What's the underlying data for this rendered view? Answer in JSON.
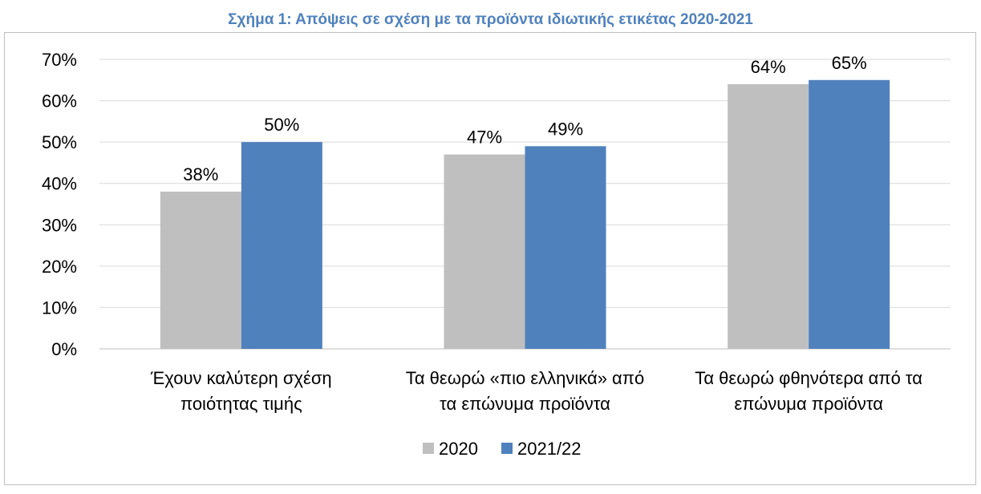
{
  "chart_data": {
    "type": "bar",
    "title": "Σχήμα 1: Απόψεις σε σχέση με τα προϊόντα ιδιωτικής ετικέτας 2020-2021",
    "categories": [
      [
        "Έχουν καλύτερη σχέση",
        "ποιότητας τιμής"
      ],
      [
        "Τα θεωρώ «πιο ελληνικά» από",
        "τα επώνυμα προϊόντα"
      ],
      [
        "Τα θεωρώ φθηνότερα από τα",
        "επώνυμα προϊόντα"
      ]
    ],
    "series": [
      {
        "name": "2020",
        "values": [
          38,
          47,
          64
        ],
        "labels": [
          "38%",
          "47%",
          "64%"
        ],
        "color": "#bfbfbf"
      },
      {
        "name": "2021/22",
        "values": [
          50,
          49,
          65
        ],
        "labels": [
          "50%",
          "49%",
          "65%"
        ],
        "color": "#4f81bd"
      }
    ],
    "ylim": [
      0,
      70
    ],
    "yticks": [
      "0%",
      "10%",
      "20%",
      "30%",
      "40%",
      "50%",
      "60%",
      "70%"
    ],
    "grid": true,
    "gridline_color": "#d9d9d9",
    "legend": "bottom"
  }
}
